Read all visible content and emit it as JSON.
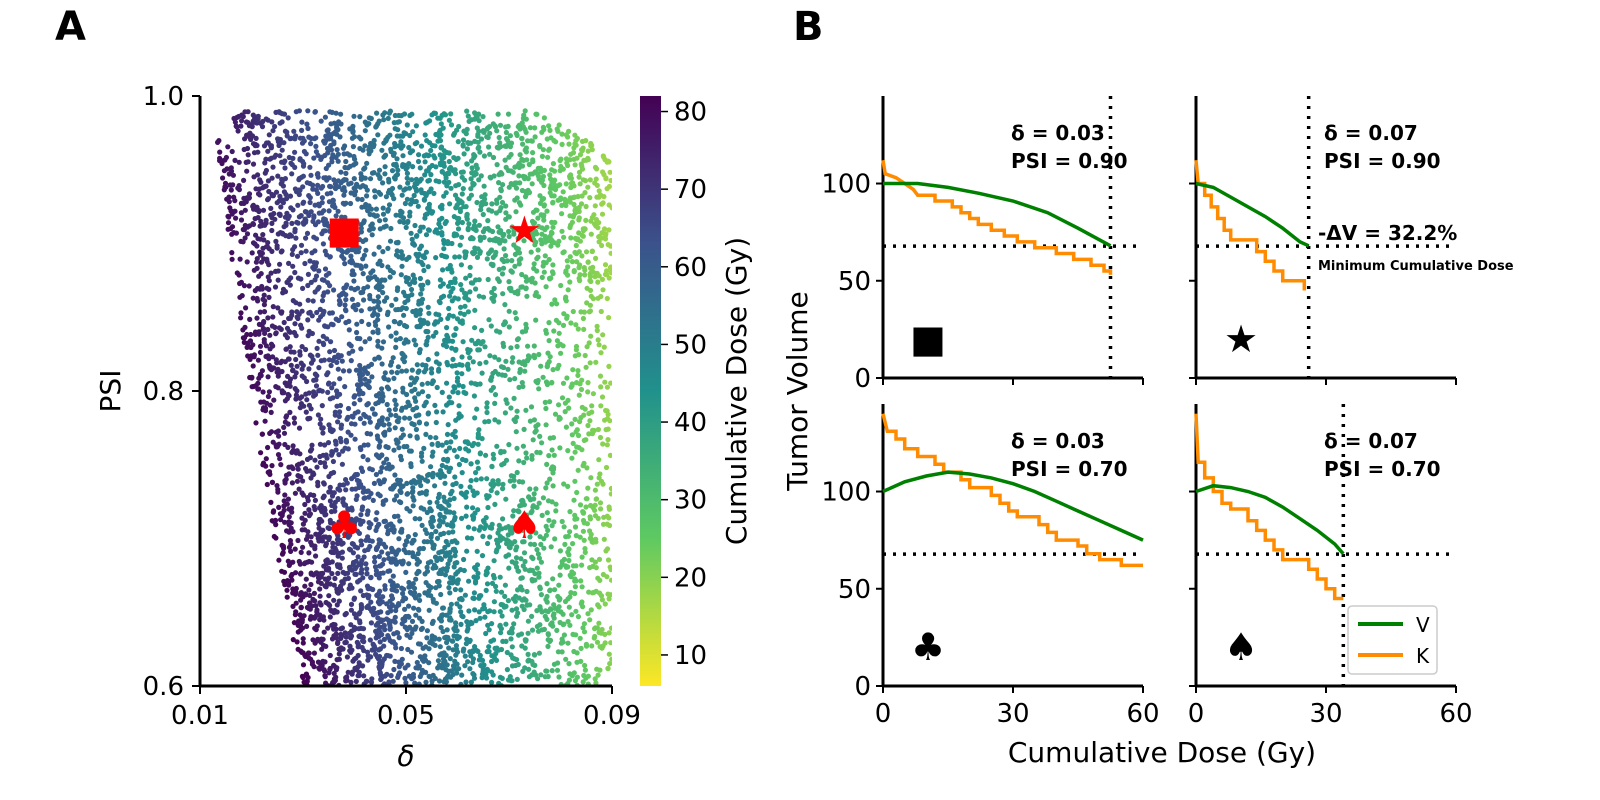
{
  "panel_labels": [
    "A",
    "B"
  ],
  "chart_data": [
    {
      "type": "scatter",
      "panel": "A",
      "xlabel": "δ",
      "ylabel": "PSI",
      "xlim": [
        0.01,
        0.09
      ],
      "ylim": [
        0.6,
        1.0
      ],
      "xticks": [
        "0.01",
        "0.05",
        "0.09"
      ],
      "yticks": [
        "0.6",
        "0.8",
        "1.0"
      ],
      "colorbar": {
        "label": "Cumulative Dose (Gy)",
        "range": [
          6,
          82
        ],
        "ticks": [
          "10",
          "20",
          "30",
          "40",
          "50",
          "60",
          "70",
          "80"
        ],
        "colormap": "viridis_reversed",
        "colors": [
          "#fde725",
          "#5ec962",
          "#21918c",
          "#3b528b",
          "#440154"
        ]
      },
      "markers": [
        {
          "symbol": "■",
          "x": 0.038,
          "y": 0.91,
          "color": "#ff0000"
        },
        {
          "symbol": "★",
          "x": 0.073,
          "y": 0.91,
          "color": "#ff0000"
        },
        {
          "symbol": "♣",
          "x": 0.038,
          "y": 0.71,
          "color": "#ff0000"
        },
        {
          "symbol": "♠",
          "x": 0.073,
          "y": 0.71,
          "color": "#ff0000"
        }
      ]
    },
    {
      "type": "line",
      "panel": "B",
      "xlabel": "Cumulative Dose (Gy)",
      "ylabel": "Tumor Volume",
      "xlim": [
        0,
        60
      ],
      "ylim": [
        0,
        145
      ],
      "xticks": [
        "0",
        "30",
        "60"
      ],
      "yticks": [
        "0",
        "50",
        "100"
      ],
      "threshold_y": 67.8,
      "legend": [
        {
          "name": "V",
          "color": "#008000"
        },
        {
          "name": "K",
          "color": "#ff8c00"
        }
      ],
      "subplots": [
        {
          "symbol": "■",
          "delta_text": "δ = 0.03",
          "psi_text": "PSI = 0.90",
          "vline_x": 52.5,
          "V": [
            [
              0,
              100
            ],
            [
              8,
              100
            ],
            [
              15,
              98
            ],
            [
              22,
              95
            ],
            [
              30,
              91
            ],
            [
              38,
              85
            ],
            [
              45,
              77
            ],
            [
              52.5,
              68
            ]
          ],
          "K": [
            [
              0,
              112
            ],
            [
              0.5,
              105
            ],
            [
              3,
              103
            ],
            [
              5,
              100
            ],
            [
              7,
              97
            ],
            [
              8,
              94
            ],
            [
              12,
              94
            ],
            [
              12,
              91
            ],
            [
              16,
              91
            ],
            [
              16,
              88
            ],
            [
              18,
              88
            ],
            [
              18,
              85
            ],
            [
              20,
              85
            ],
            [
              20,
              82
            ],
            [
              22,
              82
            ],
            [
              22,
              79
            ],
            [
              25,
              79
            ],
            [
              25,
              76
            ],
            [
              28,
              76
            ],
            [
              28,
              73
            ],
            [
              31,
              73
            ],
            [
              31,
              70
            ],
            [
              35,
              70
            ],
            [
              35,
              67
            ],
            [
              40,
              67
            ],
            [
              40,
              64
            ],
            [
              44,
              64
            ],
            [
              44,
              61
            ],
            [
              48,
              61
            ],
            [
              48,
              58
            ],
            [
              51,
              58
            ],
            [
              51,
              55
            ],
            [
              52.5,
              55
            ],
            [
              52.5,
              53
            ]
          ]
        },
        {
          "symbol": "★",
          "delta_text": "δ = 0.07",
          "psi_text": "PSI = 0.90",
          "vline_x": 26,
          "delta_v_text": "-ΔV = 32.2%",
          "min_dose_text": "Minimum Cumulative Dose",
          "V": [
            [
              0,
              100
            ],
            [
              4,
              98
            ],
            [
              8,
              93
            ],
            [
              12,
              88
            ],
            [
              16,
              83
            ],
            [
              20,
              77
            ],
            [
              24,
              70
            ],
            [
              26,
              68
            ]
          ],
          "K": [
            [
              0,
              112
            ],
            [
              0.5,
              100
            ],
            [
              2,
              100
            ],
            [
              2,
              94
            ],
            [
              3.5,
              94
            ],
            [
              3.5,
              88
            ],
            [
              5,
              88
            ],
            [
              5,
              82
            ],
            [
              6.5,
              82
            ],
            [
              6.5,
              76
            ],
            [
              8,
              76
            ],
            [
              8,
              71
            ],
            [
              14,
              71
            ],
            [
              14,
              65
            ],
            [
              16,
              65
            ],
            [
              16,
              60
            ],
            [
              18,
              60
            ],
            [
              18,
              55
            ],
            [
              20,
              55
            ],
            [
              20,
              50
            ],
            [
              25,
              50
            ],
            [
              25,
              45
            ]
          ]
        },
        {
          "symbol": "♣",
          "delta_text": "δ = 0.03",
          "psi_text": "PSI = 0.70",
          "vline_x": null,
          "V": [
            [
              0,
              100
            ],
            [
              5,
              105
            ],
            [
              10,
              108
            ],
            [
              15,
              110
            ],
            [
              20,
              109
            ],
            [
              25,
              107
            ],
            [
              30,
              104
            ],
            [
              35,
              100
            ],
            [
              40,
              95
            ],
            [
              45,
              90
            ],
            [
              50,
              85
            ],
            [
              55,
              80
            ],
            [
              60,
              75
            ]
          ],
          "K": [
            [
              0,
              140
            ],
            [
              1,
              131
            ],
            [
              3,
              131
            ],
            [
              3,
              127
            ],
            [
              5,
              127
            ],
            [
              5,
              122
            ],
            [
              8,
              122
            ],
            [
              8,
              118
            ],
            [
              12,
              118
            ],
            [
              12,
              114
            ],
            [
              14,
              114
            ],
            [
              14,
              110
            ],
            [
              18,
              110
            ],
            [
              18,
              106
            ],
            [
              20,
              106
            ],
            [
              20,
              102
            ],
            [
              25,
              102
            ],
            [
              25,
              98
            ],
            [
              27,
              98
            ],
            [
              27,
              94
            ],
            [
              29,
              94
            ],
            [
              29,
              90
            ],
            [
              31,
              90
            ],
            [
              31,
              87
            ],
            [
              36,
              87
            ],
            [
              36,
              83
            ],
            [
              38,
              83
            ],
            [
              38,
              79
            ],
            [
              40,
              79
            ],
            [
              40,
              75
            ],
            [
              45,
              75
            ],
            [
              45,
              72
            ],
            [
              47,
              72
            ],
            [
              47,
              68
            ],
            [
              50,
              68
            ],
            [
              50,
              65
            ],
            [
              55,
              65
            ],
            [
              55,
              62
            ],
            [
              60,
              62
            ]
          ]
        },
        {
          "symbol": "♠",
          "delta_text": "δ = 0.07",
          "psi_text": "PSI = 0.70",
          "vline_x": 34,
          "V": [
            [
              0,
              100
            ],
            [
              4,
              103
            ],
            [
              8,
              102
            ],
            [
              12,
              100
            ],
            [
              16,
              97
            ],
            [
              20,
              92
            ],
            [
              24,
              86
            ],
            [
              28,
              80
            ],
            [
              32,
              73
            ],
            [
              34,
              68
            ]
          ],
          "K": [
            [
              0,
              140
            ],
            [
              0.5,
              115
            ],
            [
              2,
              115
            ],
            [
              2,
              107
            ],
            [
              4,
              107
            ],
            [
              4,
              100
            ],
            [
              6,
              100
            ],
            [
              6,
              94
            ],
            [
              8,
              94
            ],
            [
              8,
              91
            ],
            [
              12,
              91
            ],
            [
              12,
              85
            ],
            [
              14,
              85
            ],
            [
              14,
              80
            ],
            [
              16,
              80
            ],
            [
              16,
              75
            ],
            [
              18,
              75
            ],
            [
              18,
              70
            ],
            [
              20,
              70
            ],
            [
              20,
              65
            ],
            [
              26,
              65
            ],
            [
              26,
              60
            ],
            [
              28,
              60
            ],
            [
              28,
              55
            ],
            [
              30,
              55
            ],
            [
              30,
              50
            ],
            [
              32,
              50
            ],
            [
              32,
              45
            ],
            [
              34,
              45
            ]
          ]
        }
      ]
    }
  ]
}
